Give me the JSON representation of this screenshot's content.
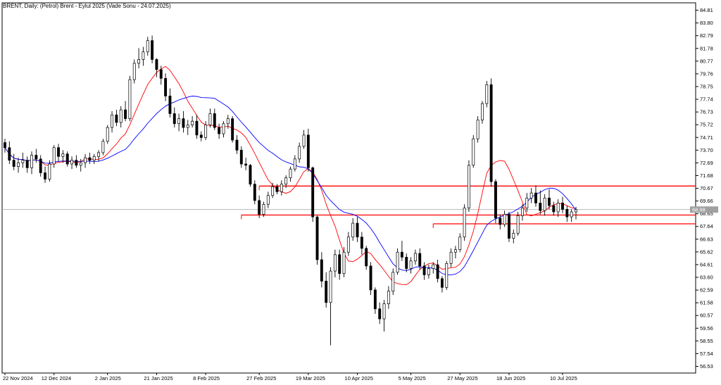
{
  "header": {
    "title": "BRENT, Daily:  (Petrol) Brent - Eylul 2025 (Vade Sonu - 24.07.2025)"
  },
  "price_badge": "68.98",
  "colors": {
    "bull_candle": "#ffffff",
    "bear_candle": "#000000",
    "candle_outline": "#000000",
    "ma_fast": "#ff0000",
    "ma_slow": "#0000ff",
    "level_lines": "#ff0000",
    "current_price_line": "#a0a0a0"
  },
  "chart_data": {
    "type": "candlestick",
    "symbol": "BRENT",
    "timeframe": "Daily",
    "ylim": [
      56.0,
      85.4
    ],
    "y_ticks": [
      "84.81",
      "83.80",
      "82.79",
      "81.78",
      "80.77",
      "79.76",
      "78.75",
      "77.74",
      "76.73",
      "75.72",
      "74.71",
      "73.70",
      "72.69",
      "71.68",
      "70.67",
      "69.66",
      "68.65",
      "67.64",
      "66.63",
      "65.62",
      "64.61",
      "63.60",
      "62.59",
      "61.58",
      "60.57",
      "59.56",
      "58.55",
      "57.54",
      "56.53"
    ],
    "x_ticks": [
      "22 Nov 2024",
      "12 Dec 2024",
      "2 Jan 2025",
      "21 Jan 2025",
      "8 Feb 2025",
      "27 Feb 2025",
      "19 Mar 2025",
      "10 Apr 2025",
      "5 May 2025",
      "27 May 2025",
      "18 Jun 2025",
      "10 Jul 2025"
    ],
    "current_price": 68.98,
    "grid": false,
    "horizontal_levels": [
      {
        "price": 70.85,
        "from_index": 57
      },
      {
        "price": 68.55,
        "from_index": 53
      },
      {
        "price": 67.85,
        "from_index": 96
      }
    ],
    "candles": [
      {
        "o": 74.3,
        "h": 74.6,
        "l": 73.5,
        "c": 73.9
      },
      {
        "o": 73.9,
        "h": 74.4,
        "l": 72.6,
        "c": 72.9
      },
      {
        "o": 72.9,
        "h": 73.4,
        "l": 72.1,
        "c": 72.4
      },
      {
        "o": 72.4,
        "h": 73.1,
        "l": 71.9,
        "c": 72.7
      },
      {
        "o": 72.7,
        "h": 73.5,
        "l": 72.3,
        "c": 72.9
      },
      {
        "o": 72.9,
        "h": 73.2,
        "l": 71.9,
        "c": 72.3
      },
      {
        "o": 72.3,
        "h": 73.6,
        "l": 71.8,
        "c": 73.3
      },
      {
        "o": 73.3,
        "h": 73.8,
        "l": 72.7,
        "c": 73.0
      },
      {
        "o": 73.0,
        "h": 73.3,
        "l": 71.6,
        "c": 71.9
      },
      {
        "o": 71.9,
        "h": 72.4,
        "l": 71.1,
        "c": 71.4
      },
      {
        "o": 71.4,
        "h": 72.9,
        "l": 71.2,
        "c": 72.6
      },
      {
        "o": 72.6,
        "h": 74.1,
        "l": 72.3,
        "c": 73.9
      },
      {
        "o": 73.9,
        "h": 74.2,
        "l": 72.8,
        "c": 73.2
      },
      {
        "o": 73.2,
        "h": 73.7,
        "l": 72.7,
        "c": 73.4
      },
      {
        "o": 73.4,
        "h": 73.6,
        "l": 72.4,
        "c": 72.6
      },
      {
        "o": 72.6,
        "h": 73.2,
        "l": 72.2,
        "c": 72.9
      },
      {
        "o": 72.9,
        "h": 73.3,
        "l": 72.3,
        "c": 72.5
      },
      {
        "o": 72.5,
        "h": 73.0,
        "l": 72.0,
        "c": 72.7
      },
      {
        "o": 72.7,
        "h": 73.4,
        "l": 72.3,
        "c": 73.1
      },
      {
        "o": 73.1,
        "h": 73.5,
        "l": 72.6,
        "c": 72.9
      },
      {
        "o": 72.9,
        "h": 73.4,
        "l": 72.6,
        "c": 73.2
      },
      {
        "o": 73.2,
        "h": 73.7,
        "l": 72.8,
        "c": 73.5
      },
      {
        "o": 73.5,
        "h": 74.6,
        "l": 73.3,
        "c": 74.4
      },
      {
        "o": 74.4,
        "h": 75.7,
        "l": 74.2,
        "c": 75.5
      },
      {
        "o": 75.5,
        "h": 76.8,
        "l": 75.1,
        "c": 76.5
      },
      {
        "o": 76.5,
        "h": 76.9,
        "l": 75.6,
        "c": 75.9
      },
      {
        "o": 75.9,
        "h": 77.2,
        "l": 75.5,
        "c": 76.9
      },
      {
        "o": 76.9,
        "h": 77.6,
        "l": 76.0,
        "c": 76.2
      },
      {
        "o": 76.2,
        "h": 79.6,
        "l": 76.0,
        "c": 79.3
      },
      {
        "o": 79.3,
        "h": 80.9,
        "l": 79.0,
        "c": 80.6
      },
      {
        "o": 80.6,
        "h": 81.8,
        "l": 80.2,
        "c": 80.9
      },
      {
        "o": 80.9,
        "h": 81.9,
        "l": 80.4,
        "c": 81.5
      },
      {
        "o": 81.5,
        "h": 82.7,
        "l": 81.2,
        "c": 82.4
      },
      {
        "o": 82.4,
        "h": 82.8,
        "l": 80.6,
        "c": 80.9
      },
      {
        "o": 80.9,
        "h": 81.0,
        "l": 79.5,
        "c": 80.1
      },
      {
        "o": 80.1,
        "h": 80.4,
        "l": 78.9,
        "c": 79.4
      },
      {
        "o": 79.4,
        "h": 79.8,
        "l": 77.6,
        "c": 78.0
      },
      {
        "o": 78.0,
        "h": 78.6,
        "l": 76.3,
        "c": 76.6
      },
      {
        "o": 76.6,
        "h": 77.1,
        "l": 75.5,
        "c": 75.8
      },
      {
        "o": 75.8,
        "h": 76.6,
        "l": 75.2,
        "c": 76.2
      },
      {
        "o": 76.2,
        "h": 76.8,
        "l": 75.1,
        "c": 75.5
      },
      {
        "o": 75.5,
        "h": 76.1,
        "l": 74.9,
        "c": 75.7
      },
      {
        "o": 75.7,
        "h": 76.4,
        "l": 75.5,
        "c": 76.0
      },
      {
        "o": 76.0,
        "h": 76.5,
        "l": 74.6,
        "c": 74.9
      },
      {
        "o": 74.9,
        "h": 75.2,
        "l": 74.4,
        "c": 74.7
      },
      {
        "o": 74.7,
        "h": 76.0,
        "l": 74.5,
        "c": 75.7
      },
      {
        "o": 75.7,
        "h": 77.0,
        "l": 75.5,
        "c": 76.6
      },
      {
        "o": 76.6,
        "h": 77.0,
        "l": 75.3,
        "c": 75.5
      },
      {
        "o": 75.5,
        "h": 75.8,
        "l": 74.6,
        "c": 75.0
      },
      {
        "o": 75.0,
        "h": 76.0,
        "l": 74.7,
        "c": 75.8
      },
      {
        "o": 75.8,
        "h": 76.5,
        "l": 75.4,
        "c": 76.2
      },
      {
        "o": 76.2,
        "h": 76.4,
        "l": 74.3,
        "c": 74.5
      },
      {
        "o": 74.5,
        "h": 74.9,
        "l": 73.4,
        "c": 73.7
      },
      {
        "o": 73.7,
        "h": 74.0,
        "l": 72.3,
        "c": 72.6
      },
      {
        "o": 72.6,
        "h": 73.1,
        "l": 72.1,
        "c": 72.5
      },
      {
        "o": 72.5,
        "h": 72.6,
        "l": 70.8,
        "c": 71.0
      },
      {
        "o": 71.0,
        "h": 71.3,
        "l": 69.4,
        "c": 69.7
      },
      {
        "o": 69.7,
        "h": 70.1,
        "l": 68.3,
        "c": 68.6
      },
      {
        "o": 68.6,
        "h": 69.6,
        "l": 68.4,
        "c": 69.4
      },
      {
        "o": 69.4,
        "h": 70.4,
        "l": 69.1,
        "c": 70.1
      },
      {
        "o": 70.1,
        "h": 71.1,
        "l": 69.9,
        "c": 70.8
      },
      {
        "o": 70.8,
        "h": 71.0,
        "l": 70.2,
        "c": 70.4
      },
      {
        "o": 70.4,
        "h": 71.3,
        "l": 70.1,
        "c": 71.0
      },
      {
        "o": 71.0,
        "h": 71.7,
        "l": 70.7,
        "c": 71.5
      },
      {
        "o": 71.5,
        "h": 72.4,
        "l": 71.2,
        "c": 72.2
      },
      {
        "o": 72.2,
        "h": 73.3,
        "l": 72.0,
        "c": 73.0
      },
      {
        "o": 73.0,
        "h": 74.3,
        "l": 72.7,
        "c": 74.0
      },
      {
        "o": 74.0,
        "h": 75.3,
        "l": 73.8,
        "c": 74.9
      },
      {
        "o": 74.9,
        "h": 75.4,
        "l": 72.0,
        "c": 72.3
      },
      {
        "o": 72.3,
        "h": 72.4,
        "l": 68.0,
        "c": 68.4
      },
      {
        "o": 68.4,
        "h": 68.5,
        "l": 64.6,
        "c": 65.0
      },
      {
        "o": 65.0,
        "h": 65.6,
        "l": 62.8,
        "c": 63.3
      },
      {
        "o": 63.3,
        "h": 64.0,
        "l": 61.2,
        "c": 61.6
      },
      {
        "o": 61.6,
        "h": 64.4,
        "l": 58.2,
        "c": 64.1
      },
      {
        "o": 64.1,
        "h": 65.8,
        "l": 63.6,
        "c": 65.4
      },
      {
        "o": 65.4,
        "h": 65.8,
        "l": 63.4,
        "c": 63.9
      },
      {
        "o": 63.9,
        "h": 66.0,
        "l": 63.6,
        "c": 65.6
      },
      {
        "o": 65.6,
        "h": 67.2,
        "l": 65.3,
        "c": 66.8
      },
      {
        "o": 66.8,
        "h": 68.3,
        "l": 66.5,
        "c": 67.9
      },
      {
        "o": 67.9,
        "h": 68.4,
        "l": 66.4,
        "c": 66.8
      },
      {
        "o": 66.8,
        "h": 67.2,
        "l": 65.4,
        "c": 65.9
      },
      {
        "o": 65.9,
        "h": 66.1,
        "l": 64.2,
        "c": 64.5
      },
      {
        "o": 64.5,
        "h": 64.8,
        "l": 62.2,
        "c": 62.6
      },
      {
        "o": 62.6,
        "h": 62.8,
        "l": 60.7,
        "c": 61.1
      },
      {
        "o": 61.1,
        "h": 61.6,
        "l": 59.9,
        "c": 60.3
      },
      {
        "o": 60.3,
        "h": 61.8,
        "l": 59.3,
        "c": 61.5
      },
      {
        "o": 61.5,
        "h": 62.9,
        "l": 61.1,
        "c": 62.5
      },
      {
        "o": 62.5,
        "h": 64.3,
        "l": 62.2,
        "c": 64.0
      },
      {
        "o": 64.0,
        "h": 65.9,
        "l": 63.8,
        "c": 65.6
      },
      {
        "o": 65.6,
        "h": 66.5,
        "l": 64.9,
        "c": 65.2
      },
      {
        "o": 65.2,
        "h": 65.5,
        "l": 64.0,
        "c": 64.3
      },
      {
        "o": 64.3,
        "h": 65.2,
        "l": 63.9,
        "c": 64.9
      },
      {
        "o": 64.9,
        "h": 65.8,
        "l": 64.6,
        "c": 65.5
      },
      {
        "o": 65.5,
        "h": 65.9,
        "l": 64.2,
        "c": 64.5
      },
      {
        "o": 64.5,
        "h": 64.8,
        "l": 63.4,
        "c": 63.8
      },
      {
        "o": 63.8,
        "h": 64.6,
        "l": 63.5,
        "c": 64.3
      },
      {
        "o": 64.3,
        "h": 64.8,
        "l": 63.9,
        "c": 64.6
      },
      {
        "o": 64.6,
        "h": 65.0,
        "l": 63.2,
        "c": 63.5
      },
      {
        "o": 63.5,
        "h": 63.7,
        "l": 62.4,
        "c": 62.8
      },
      {
        "o": 62.8,
        "h": 64.9,
        "l": 62.6,
        "c": 64.7
      },
      {
        "o": 64.7,
        "h": 65.9,
        "l": 64.4,
        "c": 65.6
      },
      {
        "o": 65.6,
        "h": 66.1,
        "l": 65.1,
        "c": 65.8
      },
      {
        "o": 65.8,
        "h": 67.1,
        "l": 65.6,
        "c": 66.8
      },
      {
        "o": 66.8,
        "h": 69.4,
        "l": 66.5,
        "c": 69.1
      },
      {
        "o": 69.1,
        "h": 72.9,
        "l": 68.8,
        "c": 72.5
      },
      {
        "o": 72.5,
        "h": 74.9,
        "l": 72.3,
        "c": 74.6
      },
      {
        "o": 74.6,
        "h": 76.4,
        "l": 74.3,
        "c": 76.1
      },
      {
        "o": 76.1,
        "h": 77.6,
        "l": 75.8,
        "c": 77.4
      },
      {
        "o": 77.4,
        "h": 79.2,
        "l": 77.1,
        "c": 78.9
      },
      {
        "o": 78.9,
        "h": 79.4,
        "l": 70.8,
        "c": 71.2
      },
      {
        "o": 71.2,
        "h": 71.4,
        "l": 67.9,
        "c": 68.3
      },
      {
        "o": 68.3,
        "h": 68.6,
        "l": 67.4,
        "c": 67.8
      },
      {
        "o": 67.8,
        "h": 68.9,
        "l": 67.6,
        "c": 68.6
      },
      {
        "o": 68.6,
        "h": 68.8,
        "l": 66.4,
        "c": 66.7
      },
      {
        "o": 66.7,
        "h": 67.4,
        "l": 66.3,
        "c": 67.1
      },
      {
        "o": 67.1,
        "h": 68.8,
        "l": 66.9,
        "c": 68.5
      },
      {
        "o": 68.5,
        "h": 69.4,
        "l": 68.1,
        "c": 69.1
      },
      {
        "o": 69.1,
        "h": 70.3,
        "l": 68.8,
        "c": 69.9
      },
      {
        "o": 69.9,
        "h": 70.7,
        "l": 69.5,
        "c": 70.3
      },
      {
        "o": 70.3,
        "h": 70.9,
        "l": 69.2,
        "c": 69.5
      },
      {
        "o": 69.5,
        "h": 70.5,
        "l": 68.6,
        "c": 68.9
      },
      {
        "o": 68.9,
        "h": 70.2,
        "l": 68.5,
        "c": 69.9
      },
      {
        "o": 69.9,
        "h": 70.6,
        "l": 69.0,
        "c": 69.3
      },
      {
        "o": 69.3,
        "h": 69.6,
        "l": 68.5,
        "c": 68.8
      },
      {
        "o": 68.8,
        "h": 69.8,
        "l": 68.4,
        "c": 69.5
      },
      {
        "o": 69.5,
        "h": 70.0,
        "l": 68.7,
        "c": 69.0
      },
      {
        "o": 69.0,
        "h": 69.3,
        "l": 68.0,
        "c": 68.4
      },
      {
        "o": 68.4,
        "h": 69.0,
        "l": 68.0,
        "c": 68.8
      },
      {
        "o": 68.8,
        "h": 69.2,
        "l": 68.2,
        "c": 68.98
      }
    ]
  }
}
